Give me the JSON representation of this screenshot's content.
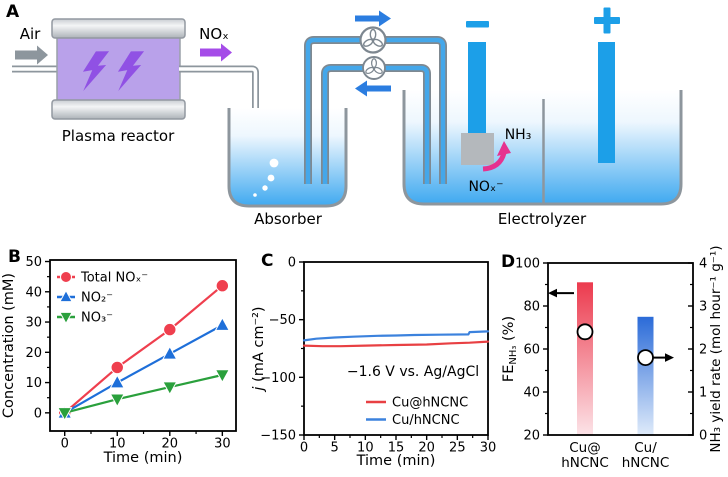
{
  "figure": {
    "panels": {
      "a": "A",
      "b": "B",
      "c": "C",
      "d": "D"
    },
    "panel_a": {
      "air_label": "Air",
      "nox_label": "NOₓ",
      "plasma_reactor_label": "Plasma reactor",
      "absorber_label": "Absorber",
      "electrolyzer_label": "Electrolyzer",
      "cathode_sign": "−",
      "anode_sign": "+",
      "nh3_label": "NH₃",
      "nox_ion_label": "NOₓ⁻",
      "colors": {
        "electrode_blue": "#1c9fe8",
        "flow_arrow_blue": "#2b7de0",
        "purple_arrow": "#a54ce8",
        "reactor_body": "#b9a1ea",
        "bolt_purple": "#9051e4",
        "pipe_gray": "#8d969d",
        "catalyst_gray": "#b4b8bc",
        "pink_arrow": "#e6328f",
        "water_blue": "#3fa9f0"
      }
    }
  },
  "chart_data": [
    {
      "id": "B",
      "type": "line",
      "xlabel": "Time (min)",
      "ylabel_parts": [
        {
          "text": "Concentration (mM)"
        }
      ],
      "xlim": [
        -2.8,
        32.6
      ],
      "ylim": [
        -6,
        50.5
      ],
      "xticks": [
        0,
        10,
        20,
        30
      ],
      "yticks": [
        0,
        10,
        20,
        30,
        40,
        50
      ],
      "grid": false,
      "legend_position": "top-left",
      "x": [
        0,
        10,
        20,
        30
      ],
      "series": [
        {
          "name": "Total NOₓ⁻",
          "color": "#ef3f4e",
          "marker": "circle",
          "values": [
            0,
            15,
            27.5,
            42
          ]
        },
        {
          "name": "NO₂⁻",
          "color": "#1e6fd9",
          "marker": "triangle-up",
          "values": [
            0,
            10,
            19.5,
            29
          ]
        },
        {
          "name": "NO₃⁻",
          "color": "#2aa03c",
          "marker": "triangle-down",
          "values": [
            0,
            4.5,
            8.5,
            12.5
          ]
        }
      ]
    },
    {
      "id": "C",
      "type": "line",
      "xlabel": "Time (min)",
      "ylabel_parts": [
        {
          "text": "j",
          "italic": true
        },
        {
          "text": " (mA cm⁻²)"
        }
      ],
      "xlim": [
        0,
        30
      ],
      "ylim": [
        -150,
        0
      ],
      "xticks": [
        0,
        5,
        10,
        15,
        20,
        25,
        30
      ],
      "yticks": [
        0,
        -50,
        -100,
        -150
      ],
      "grid": false,
      "annotation": "−1.6 V vs. Ag/AgCl",
      "legend_position": "bottom-right",
      "series": [
        {
          "name": "Cu@hNCNC",
          "color": "#e84043",
          "points": [
            [
              0,
              -72.5
            ],
            [
              3,
              -73
            ],
            [
              6,
              -73
            ],
            [
              10,
              -72.5
            ],
            [
              15,
              -72
            ],
            [
              20,
              -71.5
            ],
            [
              24,
              -70.5
            ],
            [
              27,
              -70
            ],
            [
              30,
              -69
            ]
          ]
        },
        {
          "name": "Cu/hNCNC",
          "color": "#3c82dd",
          "points": [
            [
              0,
              -68
            ],
            [
              2,
              -66.5
            ],
            [
              5,
              -65.5
            ],
            [
              8,
              -64.8
            ],
            [
              12,
              -64
            ],
            [
              15,
              -63.7
            ],
            [
              18,
              -63.3
            ],
            [
              22,
              -63
            ],
            [
              26.8,
              -62.8
            ],
            [
              27,
              -60.8
            ],
            [
              30,
              -60.2
            ]
          ]
        }
      ]
    },
    {
      "id": "D",
      "type": "bar+scatter",
      "categories": [
        [
          "Cu@",
          "hNCNC"
        ],
        [
          "Cu/",
          "hNCNC"
        ]
      ],
      "ylabel_left_parts": [
        {
          "text": "FE"
        },
        {
          "text": "NH₃",
          "sub": true
        },
        {
          "text": " (%)"
        }
      ],
      "ylabel_right": "NH₃ yield rate (mol hour⁻¹ g⁻¹)",
      "ylim_left": [
        20,
        100
      ],
      "yticks_left": [
        20,
        40,
        60,
        80,
        100
      ],
      "ylim_right": [
        0,
        4
      ],
      "yticks_right": [
        0,
        1,
        2,
        3,
        4
      ],
      "fe_values": [
        91,
        75
      ],
      "yield_values": [
        2.4,
        1.8
      ],
      "bar_gradient_top": [
        "#ec3a4e",
        "#2b6bd8"
      ],
      "bar_gradient_bottom": [
        "#fce3e7",
        "#dfebfa"
      ],
      "left_arrow_at_fe": 86,
      "right_arrow_at_yield": 1.8
    }
  ]
}
